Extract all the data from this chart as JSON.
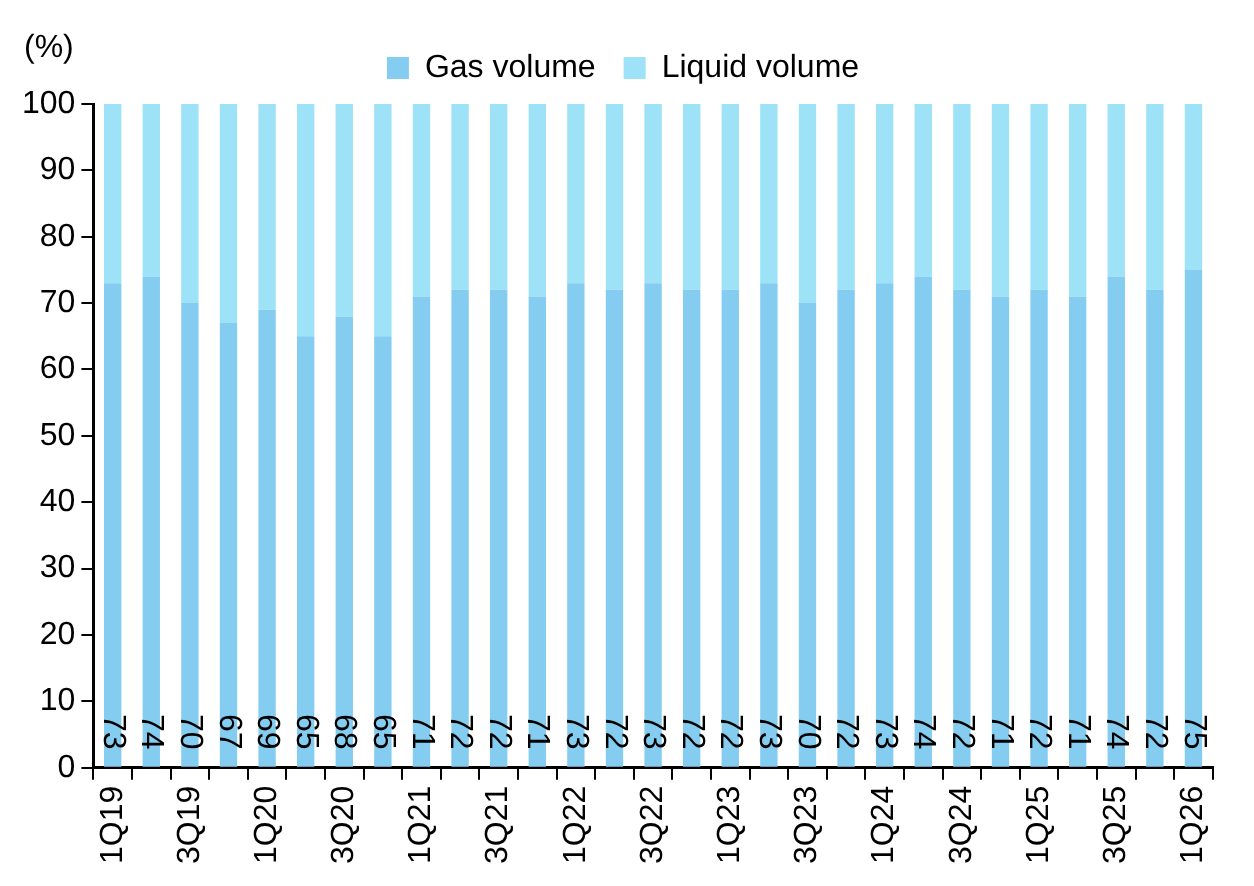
{
  "chart_data": {
    "type": "bar",
    "stacked": true,
    "ylabel": "(%)",
    "legend": "top",
    "categories": [
      "1Q19",
      null,
      "3Q19",
      null,
      "1Q20",
      null,
      "3Q20",
      null,
      "1Q21",
      null,
      "3Q21",
      null,
      "1Q22",
      null,
      "3Q22",
      null,
      "1Q23",
      null,
      "3Q23",
      null,
      "1Q24",
      null,
      "3Q24",
      null,
      "1Q25",
      null,
      "3Q25",
      null,
      "1Q26"
    ],
    "series": [
      {
        "name": "Gas volume",
        "color": "#85cdf0",
        "values": [
          73,
          74,
          70,
          67,
          69,
          65,
          68,
          65,
          71,
          72,
          72,
          71,
          73,
          72,
          73,
          72,
          72,
          73,
          70,
          72,
          73,
          74,
          72,
          71,
          72,
          71,
          74,
          72,
          75
        ],
        "value_labels": [
          "73",
          "74",
          "70",
          "67",
          "69",
          "65",
          "68",
          "65",
          "71",
          "72",
          "72",
          "71",
          "73",
          "72",
          "73",
          "72",
          "72",
          "73",
          "70",
          "72",
          "73",
          "74",
          "72",
          "71",
          "72",
          "71",
          "74",
          "72",
          "75"
        ]
      },
      {
        "name": "Liquid volume",
        "color": "#9de2f6",
        "values": [
          27,
          26,
          30,
          33,
          31,
          35,
          32,
          35,
          29,
          28,
          28,
          29,
          27,
          28,
          27,
          28,
          28,
          27,
          30,
          28,
          27,
          26,
          28,
          29,
          28,
          29,
          26,
          28,
          25
        ]
      }
    ],
    "ylim": [
      0,
      100
    ],
    "yticks": [
      0,
      10,
      20,
      30,
      40,
      50,
      60,
      70,
      80,
      90,
      100
    ],
    "grid": false
  }
}
